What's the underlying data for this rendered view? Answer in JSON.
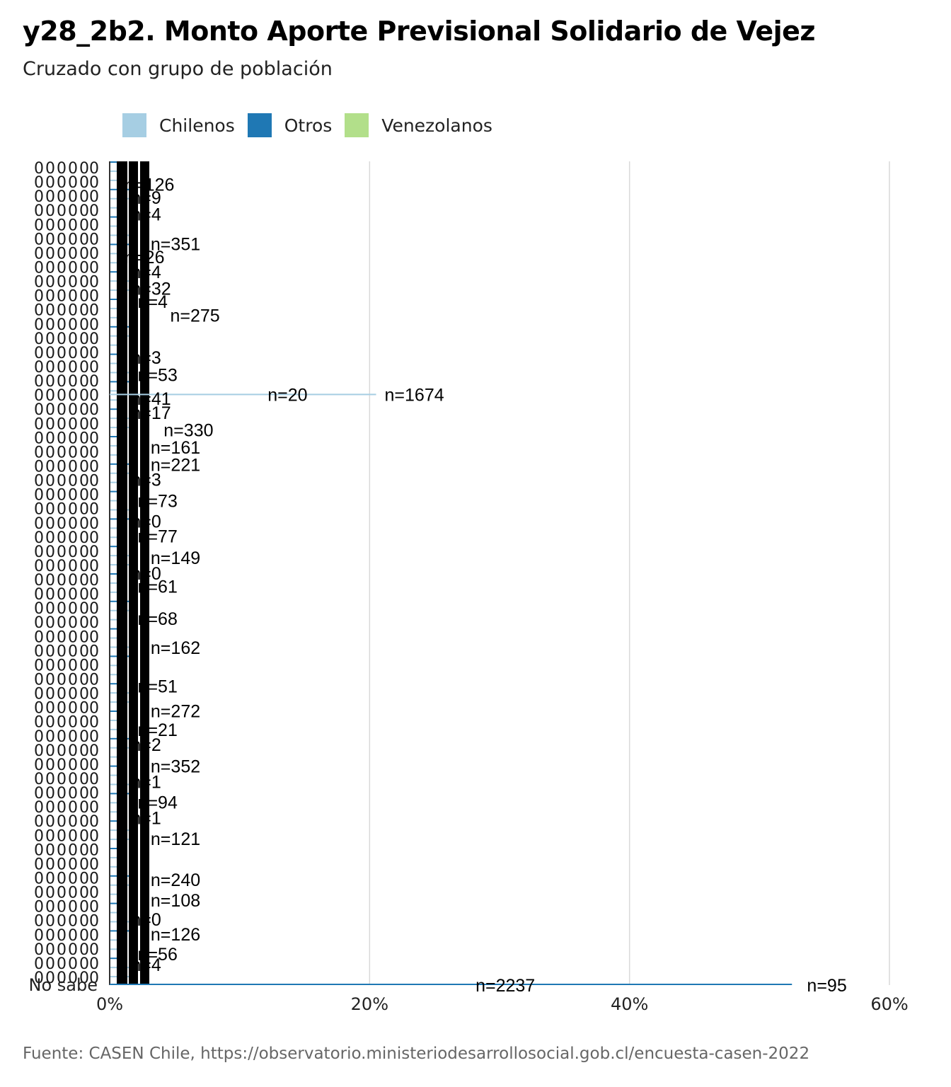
{
  "title": "y28_2b2. Monto Aporte Previsional Solidario de Vejez",
  "subtitle": "Cruzado con grupo de población",
  "caption": "Fuente: CASEN Chile, https://observatorio.ministeriodesarrollosocial.gob.cl/encuesta-casen-2022",
  "legend": [
    {
      "label": "Chilenos",
      "color": "#a6cee3"
    },
    {
      "label": "Otros",
      "color": "#1f78b4"
    },
    {
      "label": "Venezolanos",
      "color": "#b2df8a"
    }
  ],
  "chart_data": {
    "type": "bar",
    "orientation": "horizontal",
    "x_ticks": [
      "0%",
      "20%",
      "40%",
      "60%"
    ],
    "xlim": [
      0,
      60
    ],
    "grid": true,
    "legend_position": "top",
    "bottom_category": "No sabe",
    "series": [
      {
        "name": "Chilenos",
        "color": "#a6cee3"
      },
      {
        "name": "Otros",
        "color": "#1f78b4"
      },
      {
        "name": "Venezolanos",
        "color": "#b2df8a"
      }
    ],
    "labeled_points": [
      {
        "label": "n=126",
        "y_frac": 0.028,
        "pct": 0.5
      },
      {
        "label": "n=9",
        "y_frac": 0.044,
        "pct": 1.0
      },
      {
        "label": "n=4",
        "y_frac": 0.064,
        "pct": 1.0
      },
      {
        "label": "n=351",
        "y_frac": 0.1,
        "pct": 2.5
      },
      {
        "label": "n=26",
        "y_frac": 0.116,
        "pct": 0.5
      },
      {
        "label": "n=4",
        "y_frac": 0.134,
        "pct": 1.0
      },
      {
        "label": "n=32",
        "y_frac": 0.154,
        "pct": 1.0
      },
      {
        "label": "n=4",
        "y_frac": 0.17,
        "pct": 1.5
      },
      {
        "label": "n=275",
        "y_frac": 0.187,
        "pct": 4.0
      },
      {
        "label": "n=3",
        "y_frac": 0.238,
        "pct": 1.0
      },
      {
        "label": "n=53",
        "y_frac": 0.259,
        "pct": 1.5
      },
      {
        "label": "n=20",
        "y_frac": 0.283,
        "pct": 11.5
      },
      {
        "label": "n=1674",
        "y_frac": 0.283,
        "pct": 20.5
      },
      {
        "label": "n=41",
        "y_frac": 0.288,
        "pct": 1.0
      },
      {
        "label": "n=17",
        "y_frac": 0.305,
        "pct": 1.0
      },
      {
        "label": "n=330",
        "y_frac": 0.326,
        "pct": 3.5
      },
      {
        "label": "n=161",
        "y_frac": 0.347,
        "pct": 2.5
      },
      {
        "label": "n=221",
        "y_frac": 0.368,
        "pct": 2.5
      },
      {
        "label": "n=3",
        "y_frac": 0.386,
        "pct": 1.0
      },
      {
        "label": "n=73",
        "y_frac": 0.412,
        "pct": 1.5
      },
      {
        "label": "n=0",
        "y_frac": 0.437,
        "pct": 1.0
      },
      {
        "label": "n=77",
        "y_frac": 0.455,
        "pct": 1.5
      },
      {
        "label": "n=149",
        "y_frac": 0.481,
        "pct": 2.5
      },
      {
        "label": "n=0",
        "y_frac": 0.5,
        "pct": 1.0
      },
      {
        "label": "n=61",
        "y_frac": 0.516,
        "pct": 1.5
      },
      {
        "label": "n=68",
        "y_frac": 0.555,
        "pct": 1.5
      },
      {
        "label": "n=162",
        "y_frac": 0.59,
        "pct": 2.5
      },
      {
        "label": "n=51",
        "y_frac": 0.637,
        "pct": 1.5
      },
      {
        "label": "n=272",
        "y_frac": 0.667,
        "pct": 2.5
      },
      {
        "label": "n=21",
        "y_frac": 0.69,
        "pct": 1.5
      },
      {
        "label": "n=2",
        "y_frac": 0.708,
        "pct": 1.0
      },
      {
        "label": "n=352",
        "y_frac": 0.734,
        "pct": 2.5
      },
      {
        "label": "n=1",
        "y_frac": 0.753,
        "pct": 1.0
      },
      {
        "label": "n=94",
        "y_frac": 0.778,
        "pct": 1.5
      },
      {
        "label": "n=1",
        "y_frac": 0.797,
        "pct": 1.0
      },
      {
        "label": "n=121",
        "y_frac": 0.822,
        "pct": 2.5
      },
      {
        "label": "n=240",
        "y_frac": 0.872,
        "pct": 2.5
      },
      {
        "label": "n=108",
        "y_frac": 0.897,
        "pct": 2.5
      },
      {
        "label": "n=0",
        "y_frac": 0.92,
        "pct": 1.0
      },
      {
        "label": "n=126",
        "y_frac": 0.938,
        "pct": 2.5
      },
      {
        "label": "n=56",
        "y_frac": 0.962,
        "pct": 1.5
      },
      {
        "label": "n=4",
        "y_frac": 0.975,
        "pct": 1.0
      },
      {
        "label": "n=2237",
        "y_frac": 1.0,
        "pct": 27.5
      },
      {
        "label": "n=95",
        "y_frac": 1.0,
        "pct": 53.0
      }
    ],
    "bottom_bar_value": 52.5
  }
}
